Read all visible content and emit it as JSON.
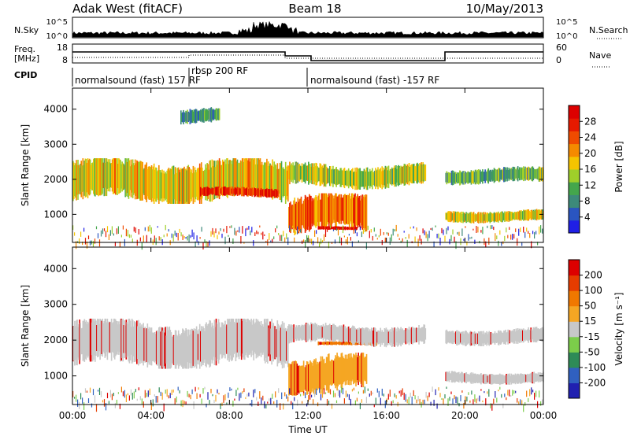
{
  "header": {
    "site": "Adak West (fitACF)",
    "beam": "Beam 18",
    "date": "10/May/2013"
  },
  "top_panels": {
    "nsky_label": "N.Sky",
    "nsky_ticks": [
      "10^5",
      "10^0"
    ],
    "nsearch_label": "N.Search",
    "freq_label_1": "Freq.",
    "freq_label_2": "[MHz]",
    "freq_ticks": [
      "18",
      "8"
    ],
    "nave_label": "Nave",
    "nave_ticks": [
      "60",
      "0"
    ],
    "cpid_label": "CPID",
    "cpid_segments": [
      "normalsound (fast) 157 RF",
      "rbsp 200 RF",
      "normalsound (fast) -157 RF"
    ]
  },
  "chart_data": [
    {
      "type": "heatmap",
      "name": "power",
      "ylabel": "Slant Range [km]",
      "yticks": [
        1000,
        2000,
        3000,
        4000
      ],
      "ylim": [
        200,
        4600
      ],
      "xlim_hours": [
        0,
        24
      ],
      "colorbar_label": "Power [dB]",
      "colorbar_ticks": [
        "4",
        "8",
        "12",
        "16",
        "20",
        "24",
        "28"
      ],
      "colorbar_colors": [
        "#1f1fe6",
        "#2a55c0",
        "#3d8a7a",
        "#44a64c",
        "#9fcf2a",
        "#f5c400",
        "#f58a00",
        "#f04b00",
        "#e61a00",
        "#dd0000"
      ],
      "regions": [
        {
          "x0": 0.0,
          "x1": 11.0,
          "r0": 1400,
          "r1": 2500,
          "level": 0.55
        },
        {
          "x0": 6.5,
          "x1": 10.5,
          "r0": 1500,
          "r1": 1750,
          "level": 0.85
        },
        {
          "x0": 11.0,
          "x1": 15.0,
          "r0": 500,
          "r1": 1500,
          "level": 0.7
        },
        {
          "x0": 12.5,
          "x1": 14.5,
          "r0": 550,
          "r1": 650,
          "level": 0.95
        },
        {
          "x0": 11.0,
          "x1": 18.0,
          "r0": 1800,
          "r1": 2400,
          "level": 0.45
        },
        {
          "x0": 19.0,
          "x1": 24.0,
          "r0": 800,
          "r1": 1100,
          "level": 0.5
        },
        {
          "x0": 19.0,
          "x1": 24.0,
          "r0": 1900,
          "r1": 2300,
          "level": 0.35
        },
        {
          "x0": 5.5,
          "x1": 7.5,
          "r0": 3600,
          "r1": 4000,
          "level": 0.3
        }
      ]
    },
    {
      "type": "heatmap",
      "name": "velocity",
      "ylabel": "Slant Range [km]",
      "yticks": [
        1000,
        2000,
        3000,
        4000
      ],
      "ylim": [
        200,
        4600
      ],
      "xlim_hours": [
        0,
        24
      ],
      "xticks": [
        "00:00",
        "04:00",
        "08:00",
        "12:00",
        "16:00",
        "20:00",
        "00:00"
      ],
      "xlabel": "Time UT",
      "colorbar_label": "Velocity [m s⁻¹]",
      "colorbar_ticks": [
        "200",
        "100",
        "50",
        "15",
        "-15",
        "-50",
        "-100",
        "-200"
      ],
      "colorbar_colors": [
        "#2020b0",
        "#3060c0",
        "#2e8b57",
        "#7ccd4a",
        "#c8c8c8",
        "#f5a623",
        "#f07800",
        "#e63c00",
        "#dd0000"
      ],
      "regions": [
        {
          "x0": 0.0,
          "x1": 11.0,
          "r0": 1300,
          "r1": 2500,
          "vel": "#c8c8c8"
        },
        {
          "x0": 11.0,
          "x1": 15.0,
          "r0": 550,
          "r1": 1550,
          "vel": "#f5a623"
        },
        {
          "x0": 12.5,
          "x1": 15.5,
          "r0": 1850,
          "r1": 1950,
          "vel": "#f07800"
        },
        {
          "x0": 11.0,
          "x1": 18.0,
          "r0": 1900,
          "r1": 2400,
          "vel": "#c8c8c8"
        },
        {
          "x0": 19.0,
          "x1": 24.0,
          "r0": 800,
          "r1": 1100,
          "vel": "#c8c8c8"
        },
        {
          "x0": 19.0,
          "x1": 24.0,
          "r0": 1900,
          "r1": 2300,
          "vel": "#c8c8c8"
        }
      ]
    }
  ]
}
